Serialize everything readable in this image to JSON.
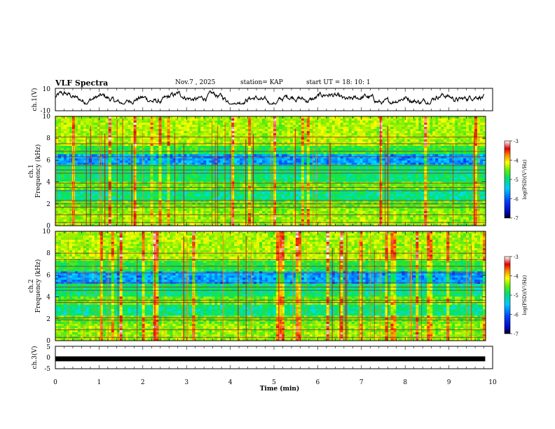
{
  "header": {
    "title": "VLF Spectra",
    "date": "Nov.7 , 2025",
    "station": "station= KAP",
    "start": "start UT = 18: 10: 1"
  },
  "chart_data": [
    {
      "type": "line",
      "id": "ch1-waveform",
      "ylabel": "ch.1(V)",
      "ylim": [
        -10,
        10
      ],
      "ytick_labels": [
        "10",
        "-10"
      ],
      "xlim": [
        0,
        10
      ],
      "series": [
        {
          "name": "ch.1",
          "color": "#000000",
          "description_values": "noisy waveform oscillating between about -3 and 6 V"
        }
      ]
    },
    {
      "type": "heatmap",
      "id": "ch1-spectrogram",
      "ylabel_top": "ch.1",
      "ylabel": "Frequency (kHz)",
      "ylim": [
        0,
        10
      ],
      "yticks": [
        0,
        2,
        4,
        6,
        8,
        10
      ],
      "xlim": [
        0,
        9.8
      ],
      "colorbar": {
        "label": "log(PSD)(V²/Hz)",
        "range": [
          -7,
          -3
        ],
        "ticks": [
          "-3",
          "-4",
          "-5",
          "-6",
          "-7"
        ]
      },
      "quiet_band_khz": [
        5.5,
        6.5
      ],
      "line_freqs_khz": [
        0.3,
        1.0,
        1.7,
        2.0,
        2.3,
        3.2,
        3.5,
        3.9,
        4.8,
        5.1,
        5.5,
        6.3,
        6.8,
        7.5,
        8.1
      ]
    },
    {
      "type": "heatmap",
      "id": "ch2-spectrogram",
      "ylabel_top": "ch.2",
      "ylabel": "Frequency (kHz)",
      "ylim": [
        0,
        10
      ],
      "yticks": [
        0,
        2,
        4,
        6,
        8,
        10
      ],
      "xlim": [
        0,
        9.8
      ],
      "colorbar": {
        "label": "log(PSD)(V²/Hz)",
        "range": [
          -7,
          -3
        ],
        "ticks": [
          "-3",
          "-4",
          "-5",
          "-6",
          "-7"
        ]
      },
      "quiet_band_khz": [
        5.2,
        6.3
      ],
      "line_freqs_khz": [
        0.3,
        1.0,
        1.9,
        2.1,
        3.5,
        3.7,
        4.6,
        4.9,
        5.3,
        6.2,
        6.8,
        7.4,
        8.0
      ]
    },
    {
      "type": "line",
      "id": "ch3-waveform",
      "ylabel": "ch.3(V)",
      "ylim": [
        -5,
        5
      ],
      "ytick_labels": [
        "5",
        "0",
        "-5"
      ],
      "xlim": [
        0,
        10
      ],
      "xlabel": "Time (min)",
      "xtick_labels": [
        "0",
        "1",
        "2",
        "3",
        "4",
        "5",
        "6",
        "7",
        "8",
        "9",
        "10"
      ],
      "series": [
        {
          "name": "ch.3",
          "color": "#000000",
          "constant_value_v": -0.6
        }
      ]
    }
  ]
}
